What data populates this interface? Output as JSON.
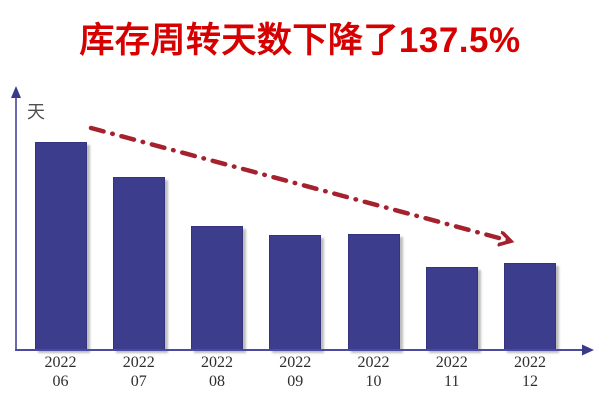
{
  "title": {
    "text": "库存周转天数下降了137.5%",
    "color": "#d60000"
  },
  "y_axis": {
    "unit_label": "天",
    "axis_color": "#6a6ab2",
    "arrow_color": "#3a3a8a"
  },
  "x_axis": {
    "axis_color": "#4a4aa0",
    "arrow_color": "#3a3a8a"
  },
  "trend_arrow": {
    "style": "dash-dot",
    "color": "#a5212e",
    "description": "red dash-dot arrow sloping down from above first bar to above last bar"
  },
  "chart_data": {
    "type": "bar",
    "title": "库存周转天数下降了137.5%",
    "xlabel": "",
    "ylabel": "天",
    "categories": [
      {
        "line1": "2022",
        "line2": "06"
      },
      {
        "line1": "2022",
        "line2": "07"
      },
      {
        "line1": "2022",
        "line2": "08"
      },
      {
        "line1": "2022",
        "line2": "09"
      },
      {
        "line1": "2022",
        "line2": "10"
      },
      {
        "line1": "2022",
        "line2": "11"
      },
      {
        "line1": "2022",
        "line2": "12"
      }
    ],
    "values": [
      208,
      173,
      124,
      115,
      116,
      83,
      87
    ],
    "units": "relative bar height (no numeric value labels or gridlines shown)",
    "bar_color": "#3d3d8e",
    "grid": "off",
    "legend": "none",
    "annotations": [
      "dash-dot red trend arrow from (≈88,128) to (≈525,245) indicating decline"
    ]
  }
}
